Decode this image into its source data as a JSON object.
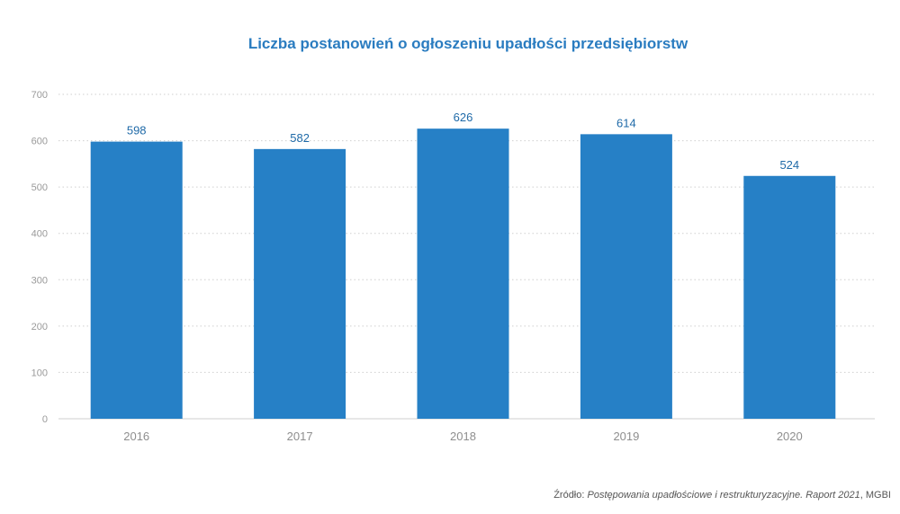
{
  "chart_data": {
    "type": "bar",
    "title": "Liczba postanowień o ogłoszeniu upadłości przedsiębiorstw",
    "xlabel": "",
    "ylabel": "",
    "categories": [
      "2016",
      "2017",
      "2018",
      "2019",
      "2020"
    ],
    "values": [
      598,
      582,
      626,
      614,
      524
    ],
    "ylim": [
      0,
      700
    ],
    "yticks": [
      0,
      100,
      200,
      300,
      400,
      500,
      600,
      700
    ],
    "grid": true,
    "legend": "none",
    "data_labels": true,
    "bar_color": "#2680c6",
    "title_color": "#2a7cc0",
    "data_label_color": "#1f6aa8"
  },
  "source": {
    "prefix": "Źródło: ",
    "italic_text": "Postępowania upadłościowe i restrukturyzacyjne. Raport 2021",
    "suffix": ", MGBI"
  }
}
